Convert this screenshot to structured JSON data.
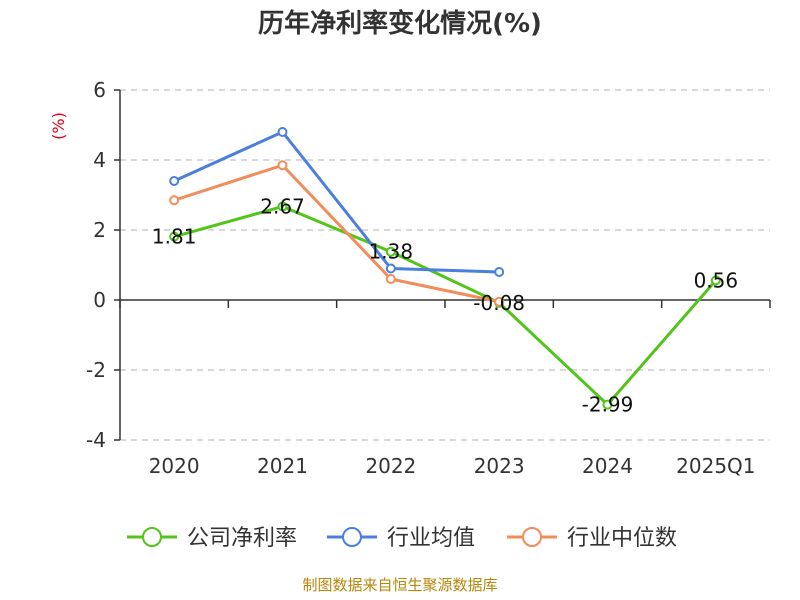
{
  "chart_data": {
    "type": "line",
    "title": "历年净利率变化情况(%)",
    "unit_label": "(%)",
    "categories": [
      "2020",
      "2021",
      "2022",
      "2023",
      "2024",
      "2025Q1"
    ],
    "ylim": [
      -4,
      6
    ],
    "yticks": [
      -4,
      -2,
      0,
      2,
      4,
      6
    ],
    "grid": true,
    "legend_position": "bottom",
    "series": [
      {
        "name": "公司净利率",
        "color": "#52c41a",
        "values": [
          1.81,
          2.67,
          1.38,
          -0.08,
          -2.99,
          0.56
        ],
        "data_labels": [
          "1.81",
          "2.67",
          "1.38",
          "-0.08",
          "-2.99",
          "0.56"
        ]
      },
      {
        "name": "行业均值",
        "color": "#4a7fe0",
        "values": [
          3.4,
          4.8,
          0.9,
          0.8,
          null,
          null
        ]
      },
      {
        "name": "行业中位数",
        "color": "#f28c5a",
        "values": [
          2.85,
          3.85,
          0.6,
          -0.05,
          null,
          null
        ]
      }
    ]
  },
  "source": "制图数据来自恒生聚源数据库"
}
